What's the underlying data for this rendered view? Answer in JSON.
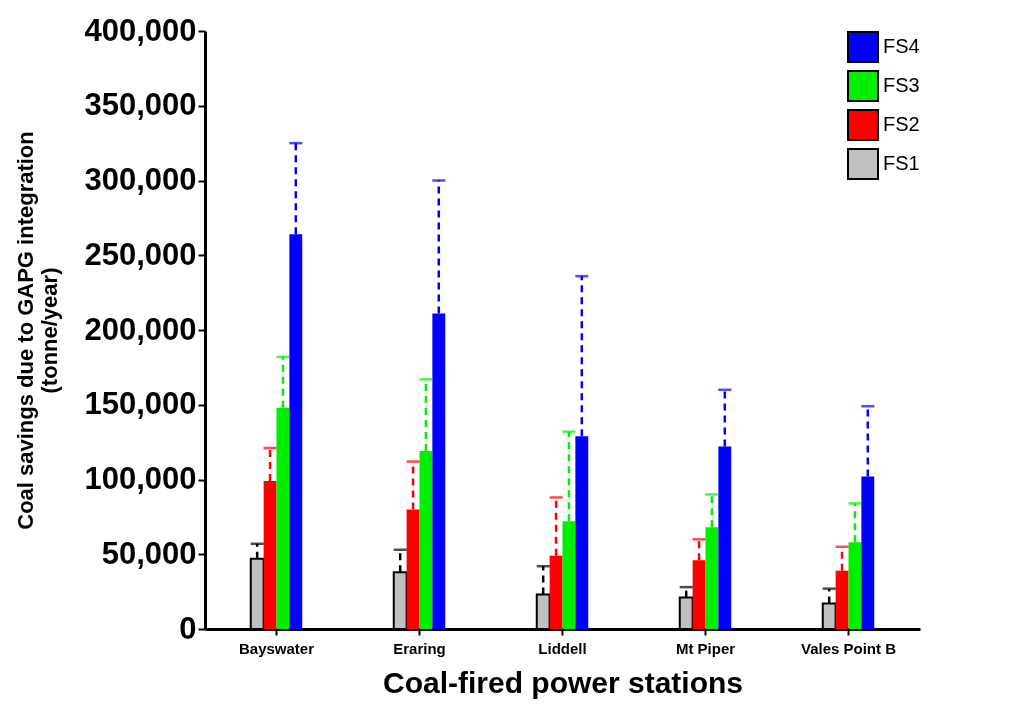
{
  "chart_data": {
    "type": "bar",
    "xlabel": "Coal-fired power stations",
    "ylabel": "Coal savings due to GAPG integration\n(tonne/year)",
    "categories": [
      "Bayswater",
      "Eraring",
      "Liddell",
      "Mt Piper",
      "Vales Point B"
    ],
    "ylim": [
      0,
      400000
    ],
    "yticks": [
      0,
      {
        "value": 50000,
        "label": "50,000"
      },
      {
        "value": 100000,
        "label": "100,000"
      },
      {
        "value": 150000,
        "label": "150,000"
      },
      {
        "value": 200000,
        "label": "200,000"
      },
      {
        "value": 250000,
        "label": "250,000"
      },
      {
        "value": 300000,
        "label": "300,000"
      },
      {
        "value": 350000,
        "label": "350,000"
      },
      {
        "value": 400000,
        "label": "400,000"
      }
    ],
    "grid": false,
    "legend": "top right",
    "series": [
      {
        "name": "FS1",
        "color": "#c0c0c0",
        "values": [
          47000,
          38000,
          23000,
          21000,
          17000
        ],
        "errors": [
          [
            47000,
            57000
          ],
          [
            38000,
            53000
          ],
          [
            23000,
            42000
          ],
          [
            21000,
            28000
          ],
          [
            17000,
            27000
          ]
        ]
      },
      {
        "name": "FS2",
        "color": "#ff0000",
        "values": [
          99000,
          80000,
          49000,
          46000,
          39000
        ],
        "errors": [
          [
            99000,
            121000
          ],
          [
            80000,
            112000
          ],
          [
            49000,
            88000
          ],
          [
            46000,
            60000
          ],
          [
            39000,
            55000
          ]
        ]
      },
      {
        "name": "FS3",
        "color": "#00ee00",
        "values": [
          148000,
          119000,
          72000,
          68000,
          58000
        ],
        "errors": [
          [
            148000,
            182000
          ],
          [
            119000,
            167000
          ],
          [
            72000,
            132000
          ],
          [
            68000,
            90000
          ],
          [
            58000,
            84000
          ]
        ]
      },
      {
        "name": "FS4",
        "color": "#0000ff",
        "values": [
          264000,
          211000,
          129000,
          122000,
          102000
        ],
        "errors": [
          [
            264000,
            325000
          ],
          [
            211000,
            300000
          ],
          [
            129000,
            236000
          ],
          [
            122000,
            160000
          ],
          [
            102000,
            149000
          ]
        ]
      }
    ]
  }
}
